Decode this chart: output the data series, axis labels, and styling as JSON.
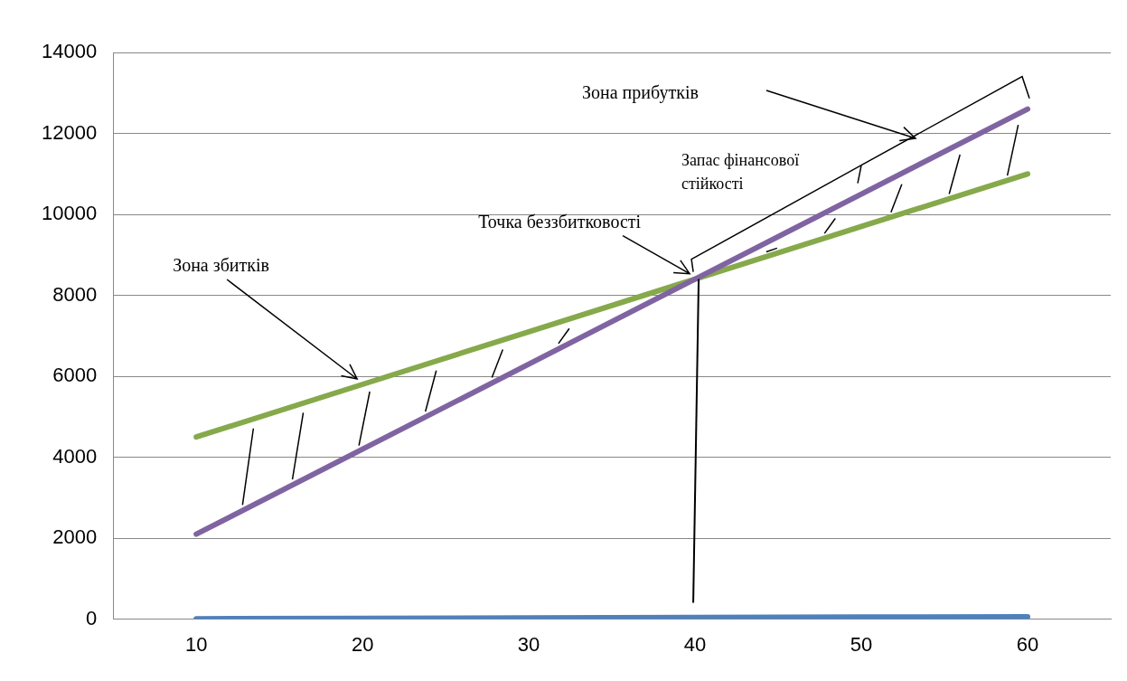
{
  "chart_data": {
    "type": "line",
    "categories": [
      "10",
      "20",
      "30",
      "40",
      "50",
      "60"
    ],
    "series": [
      {
        "color": "#4f81bd",
        "values": [
          10,
          20,
          30,
          40,
          50,
          60
        ]
      },
      {
        "color": "#8064a2",
        "values": [
          2100,
          4200,
          6300,
          8400,
          10500,
          12600
        ]
      },
      {
        "color": "#86a94b",
        "values": [
          4500,
          5800,
          7100,
          8400,
          9700,
          11000
        ]
      }
    ],
    "ylim": [
      0,
      14000
    ],
    "yticks": [
      0,
      2000,
      4000,
      6000,
      8000,
      10000,
      12000,
      14000
    ],
    "grid": "y",
    "legend": false,
    "marker": "none",
    "line_style": "solid",
    "annotations": [
      "Зона прибутків",
      "Запас фінансової стійкості",
      {
        "text": "Зона збитків",
        "x": "20",
        "y": 5800
      },
      {
        "text": "Точка беззбитковості",
        "x": "40",
        "y": 8400
      }
    ]
  }
}
